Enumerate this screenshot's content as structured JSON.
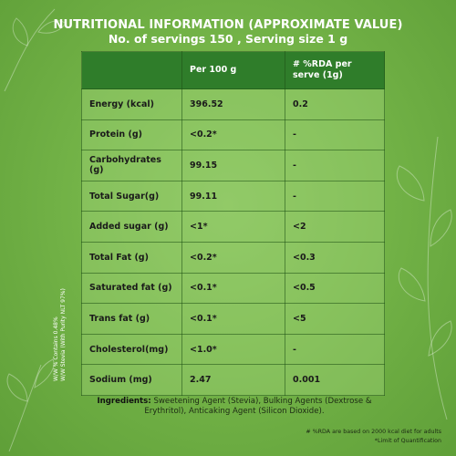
{
  "header": {
    "title": "NUTRITIONAL INFORMATION (APPROXIMATE VALUE)",
    "subtitle": "No. of servings 150 , Serving size 1 g"
  },
  "table": {
    "columns": [
      "",
      "Per 100 g",
      "# %RDA per serve  (1g)"
    ],
    "rows": [
      {
        "label": "Energy (kcal)",
        "per100": "396.52",
        "rda": "0.2"
      },
      {
        "label": "Protein (g)",
        "per100": "<0.2*",
        "rda": "-"
      },
      {
        "label": "Carbohydrates (g)",
        "per100": "99.15",
        "rda": "-"
      },
      {
        "label": "Total Sugar(g)",
        "per100": "99.11",
        "rda": "-"
      },
      {
        "label": "Added sugar (g)",
        "per100": "<1*",
        "rda": "<2"
      },
      {
        "label": "Total Fat (g)",
        "per100": "<0.2*",
        "rda": "<0.3"
      },
      {
        "label": "Saturated fat (g)",
        "per100": "<0.1*",
        "rda": "<0.5"
      },
      {
        "label": "Trans fat (g)",
        "per100": "<0.1*",
        "rda": "<5"
      },
      {
        "label": "Cholesterol(mg)",
        "per100": "<1.0*",
        "rda": "-"
      },
      {
        "label": "Sodium (mg)",
        "per100": "2.47",
        "rda": "0.001"
      }
    ]
  },
  "side_note": {
    "line1": "W/W % Contains 0.48%",
    "line2": "W/W Stevia  (With Purity NLT 97%)"
  },
  "ingredients": {
    "heading": "Ingredients:",
    "text": "Sweetening Agent (Stevia), Bulking Agents (Dextrose & Erythritol), Anticaking Agent (Silicon Dioxide)."
  },
  "footnotes": {
    "rda": "# %RDA are based on 2000 kcal diet for adults",
    "loq": "*Limit of Quantification"
  },
  "colors": {
    "background": "#74b448",
    "header_row": "#2f7d2a",
    "text": "#ffffff"
  }
}
